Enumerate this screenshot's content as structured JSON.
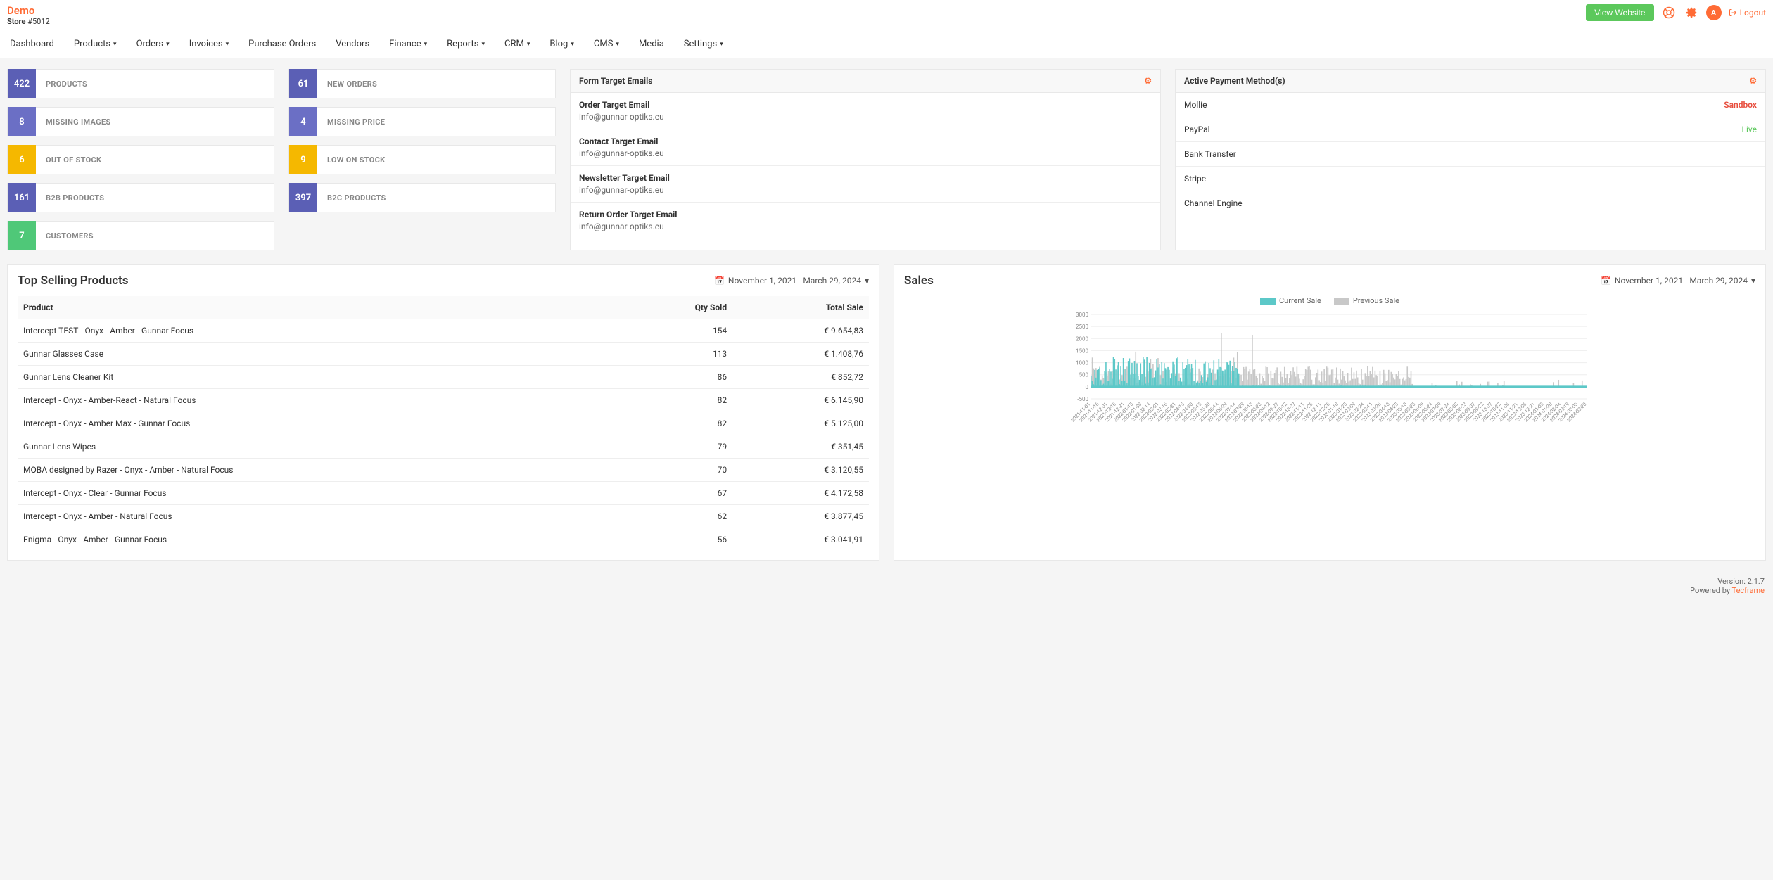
{
  "header": {
    "brand": "Demo",
    "store_label": "Store",
    "store_num": "#5012",
    "view_website": "View Website",
    "avatar_letter": "A",
    "logout": "Logout"
  },
  "nav": [
    "Dashboard",
    "Products",
    "Orders",
    "Invoices",
    "Purchase Orders",
    "Vendors",
    "Finance",
    "Reports",
    "CRM",
    "Blog",
    "CMS",
    "Media",
    "Settings"
  ],
  "nav_dropdowns": [
    false,
    true,
    true,
    true,
    false,
    false,
    true,
    true,
    true,
    true,
    true,
    false,
    true
  ],
  "stats": {
    "col1": [
      {
        "num": "422",
        "label": "PRODUCTS",
        "color": "#5b5fb5"
      },
      {
        "num": "8",
        "label": "MISSING IMAGES",
        "color": "#6b6fc5"
      },
      {
        "num": "6",
        "label": "OUT OF STOCK",
        "color": "#f5b800"
      },
      {
        "num": "161",
        "label": "B2B PRODUCTS",
        "color": "#5b5fb5"
      },
      {
        "num": "7",
        "label": "CUSTOMERS",
        "color": "#4fc878"
      }
    ],
    "col2": [
      {
        "num": "61",
        "label": "NEW ORDERS",
        "color": "#5b5fb5"
      },
      {
        "num": "4",
        "label": "MISSING PRICE",
        "color": "#6b6fc5"
      },
      {
        "num": "9",
        "label": "LOW ON STOCK",
        "color": "#f5b800"
      },
      {
        "num": "397",
        "label": "B2C PRODUCTS",
        "color": "#5b5fb5"
      }
    ]
  },
  "emails": {
    "title": "Form Target Emails",
    "items": [
      {
        "label": "Order Target Email",
        "value": "info@gunnar-optiks.eu"
      },
      {
        "label": "Contact Target Email",
        "value": "info@gunnar-optiks.eu"
      },
      {
        "label": "Newsletter Target Email",
        "value": "info@gunnar-optiks.eu"
      },
      {
        "label": "Return Order Target Email",
        "value": "info@gunnar-optiks.eu"
      }
    ]
  },
  "payments": {
    "title": "Active Payment Method(s)",
    "items": [
      {
        "name": "Mollie",
        "status": "Sandbox",
        "cls": "pay-sandbox"
      },
      {
        "name": "PayPal",
        "status": "Live",
        "cls": "pay-live"
      },
      {
        "name": "Bank Transfer",
        "status": "",
        "cls": ""
      },
      {
        "name": "Stripe",
        "status": "",
        "cls": ""
      },
      {
        "name": "Channel Engine",
        "status": "",
        "cls": ""
      }
    ]
  },
  "top_products": {
    "title": "Top Selling Products",
    "date_range": "November 1, 2021 - March 29, 2024",
    "columns": [
      "Product",
      "Qty Sold",
      "Total Sale"
    ],
    "rows": [
      [
        "Intercept TEST - Onyx - Amber - Gunnar Focus",
        "154",
        "€ 9.654,83"
      ],
      [
        "Gunnar Glasses Case",
        "113",
        "€ 1.408,76"
      ],
      [
        "Gunnar Lens Cleaner Kit",
        "86",
        "€ 852,72"
      ],
      [
        "Intercept - Onyx - Amber-React - Natural Focus",
        "82",
        "€ 6.145,90"
      ],
      [
        "Intercept - Onyx - Amber Max - Gunnar Focus",
        "82",
        "€ 5.125,00"
      ],
      [
        "Gunnar Lens Wipes",
        "79",
        "€ 351,45"
      ],
      [
        "MOBA designed by Razer - Onyx - Amber - Natural Focus",
        "70",
        "€ 3.120,55"
      ],
      [
        "Intercept - Onyx - Clear - Gunnar Focus",
        "67",
        "€ 4.172,58"
      ],
      [
        "Intercept - Onyx - Amber - Natural Focus",
        "62",
        "€ 3.877,45"
      ],
      [
        "Enigma - Onyx - Amber - Gunnar Focus",
        "56",
        "€ 3.041,91"
      ]
    ]
  },
  "sales": {
    "title": "Sales",
    "date_range": "November 1, 2021 - March 29, 2024",
    "legend_current": "Current Sale",
    "legend_previous": "Previous Sale",
    "current_color": "#5cc8c8",
    "previous_color": "#c8c8c8",
    "ylim": [
      -500,
      3000
    ],
    "yticks": [
      -500,
      0,
      500,
      1000,
      1500,
      2000,
      2500,
      3000
    ],
    "xticks": [
      "2021-11-01",
      "2021-11-16",
      "2021-12-01",
      "2021-12-16",
      "2021-12-31",
      "2022-01-15",
      "2022-01-30",
      "2022-02-14",
      "2022-03-01",
      "2022-03-16",
      "2022-03-31",
      "2022-04-15",
      "2022-04-30",
      "2022-05-15",
      "2022-05-30",
      "2022-06-14",
      "2022-06-29",
      "2022-07-14",
      "2022-07-29",
      "2022-08-13",
      "2022-08-28",
      "2022-09-12",
      "2022-09-27",
      "2022-10-12",
      "2022-10-27",
      "2022-11-11",
      "2022-11-26",
      "2022-12-11",
      "2022-12-26",
      "2023-01-10",
      "2023-01-25",
      "2023-02-09",
      "2023-02-24",
      "2023-03-11",
      "2023-03-26",
      "2023-04-10",
      "2023-04-25",
      "2023-05-10",
      "2023-05-25",
      "2023-06-09",
      "2023-06-24",
      "2023-07-09",
      "2023-07-24",
      "2023-08-08",
      "2023-08-23",
      "2023-09-07",
      "2023-09-22",
      "2023-10-07",
      "2023-10-22",
      "2023-11-06",
      "2023-11-21",
      "2023-12-06",
      "2023-12-21",
      "2024-01-05",
      "2024-01-20",
      "2024-02-04",
      "2024-02-19",
      "2024-03-05",
      "2024-03-20"
    ],
    "background_color": "#ffffff",
    "grid_color": "#eeeeee"
  },
  "footer": {
    "version_label": "Version:",
    "version": "2.1.7",
    "powered_by": "Powered by",
    "powered_link": "Tecframe"
  }
}
